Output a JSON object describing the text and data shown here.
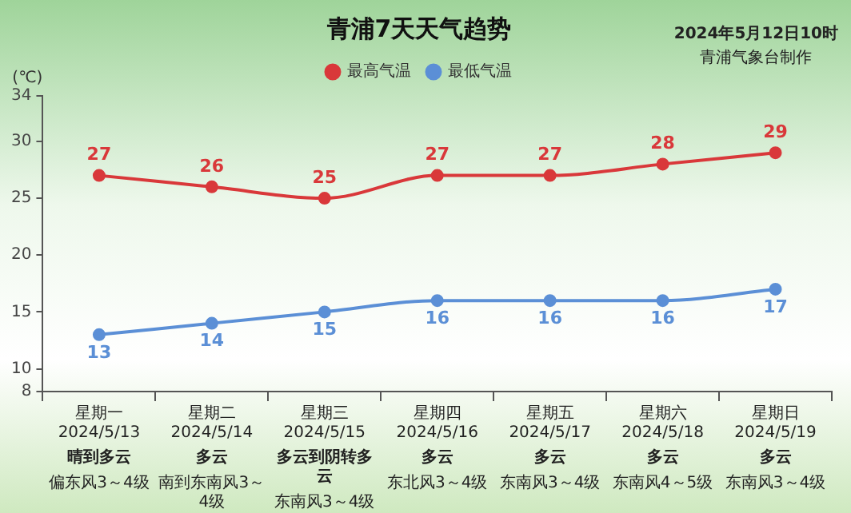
{
  "chart_data": {
    "type": "line",
    "title": "青浦7天天气趋势",
    "ylabel": "(℃)",
    "annotations": [
      "2024年5月12日10时",
      "青浦气象台制作",
      "晴到多云",
      "偏东风3～4级",
      "多云",
      "南到东南风3～4级",
      "多云到阴转多云",
      "东南风3～4级",
      "多云",
      "东北风3～4级",
      "多云",
      "东南风3～4级",
      "多云",
      "东南风4～5级",
      "多云",
      "东南风3～4级"
    ],
    "categories": [
      "星期一\n2024/5/13",
      "星期二\n2024/5/14",
      "星期三\n2024/5/15",
      "星期四\n2024/5/16",
      "星期五\n2024/5/17",
      "星期六\n2024/5/18",
      "星期日\n2024/5/19"
    ],
    "series": [
      {
        "name": "最高气温",
        "color": "#d9383a",
        "values": [
          27,
          26,
          25,
          27,
          27,
          28,
          29
        ]
      },
      {
        "name": "最低气温",
        "color": "#5b8fd6",
        "values": [
          13,
          14,
          15,
          16,
          16,
          16,
          17
        ]
      }
    ],
    "ylim": [
      8,
      34
    ],
    "yticks": [
      8,
      10,
      15,
      20,
      25,
      30,
      34
    ],
    "grid": false,
    "legend": "top",
    "marker": "circle",
    "line_style": "solid",
    "data_labels": true
  }
}
